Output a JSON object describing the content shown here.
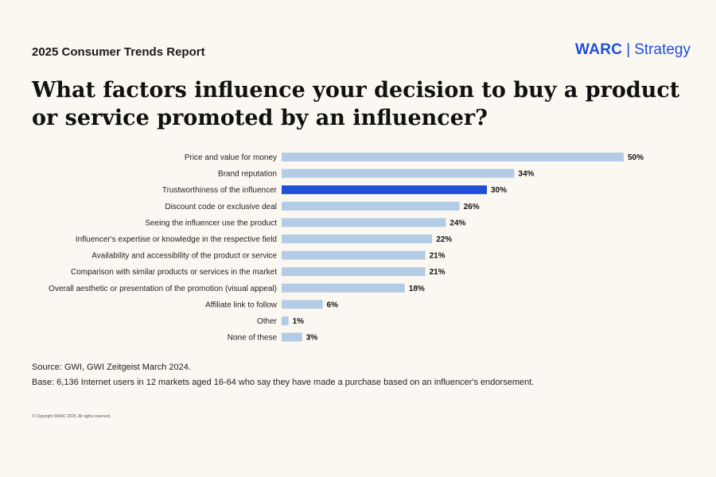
{
  "header": {
    "report_label": "2025 Consumer Trends Report",
    "brand_name": "WARC",
    "brand_separator": "|",
    "brand_sub": "Strategy",
    "brand_color": "#1f4fd6"
  },
  "title": "What factors influence your decision to buy a product or service promoted by an influencer?",
  "chart_data": {
    "type": "bar",
    "orientation": "horizontal",
    "title": "What factors influence your decision to buy a product or service promoted by an influencer?",
    "categories": [
      "Price and value for money",
      "Brand reputation",
      "Trustworthiness of the influencer",
      "Discount code or exclusive deal",
      "Seeing the influencer use the product",
      "Influencer's expertise or knowledge in the respective field",
      "Availability and accessibility of the product or service",
      "Comparison with similar products or services in the market",
      "Overall aesthetic or presentation of the promotion (visual appeal)",
      "Affiliate link to follow",
      "Other",
      "None of these"
    ],
    "values": [
      50,
      34,
      30,
      26,
      24,
      22,
      21,
      21,
      18,
      6,
      1,
      3
    ],
    "value_labels": [
      "50%",
      "34%",
      "30%",
      "26%",
      "24%",
      "22%",
      "21%",
      "21%",
      "18%",
      "6%",
      "1%",
      "3%"
    ],
    "highlight_index": 2,
    "xlim": [
      0,
      50
    ],
    "grid": false,
    "colors": {
      "default": "#b3cbe4",
      "highlight": "#1f4fd6"
    }
  },
  "footer": {
    "source": "Source: GWI, GWI Zeitgeist March 2024.",
    "base": "Base: 6,136 Internet users in 12 markets aged 16-64 who say they have made a purchase based on an influencer's endorsement.",
    "copyright": "© Copyright WARC 2025. All rights reserved."
  }
}
